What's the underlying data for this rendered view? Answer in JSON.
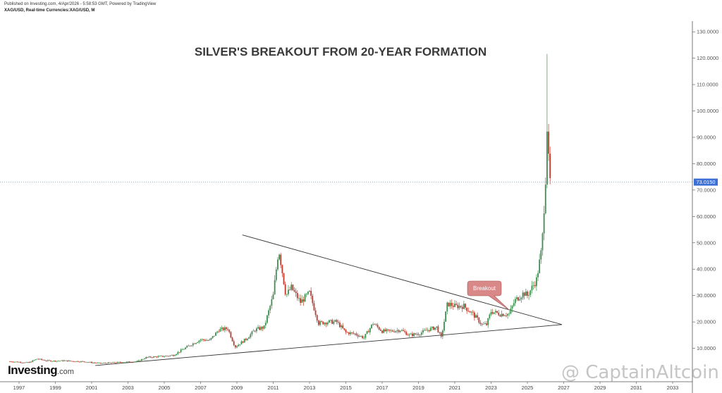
{
  "header": {
    "published": "Published on Investing.com, 4/Apr/2026 - 5:58:53 GMT, Powered by TradingView",
    "symbol": "XAG/USD, Real-time Currencies:XAG/USD, M"
  },
  "logo": {
    "main": "Investing",
    "suffix": ".com"
  },
  "watermark": "@ CaptainAltcoin",
  "colors": {
    "up": "#3e8e4f",
    "down": "#c0392b",
    "price_label": "#3b6fd6",
    "annotation": "#d98888",
    "trendline": "#333333"
  },
  "chart_data": {
    "type": "candlestick",
    "title": "SILVER'S BREAKOUT FROM 20-YEAR FORMATION",
    "interval": "monthly",
    "x_tick_labels": [
      "1997",
      "1999",
      "2001",
      "2003",
      "2005",
      "2007",
      "2009",
      "2011",
      "2013",
      "2015",
      "2017",
      "2019",
      "2021",
      "2023",
      "2025",
      "2027",
      "2029",
      "2031",
      "2033"
    ],
    "y_tick_labels": [
      "130.0000",
      "120.0000",
      "110.0000",
      "100.0000",
      "90.0000",
      "80.0000",
      "70.0000",
      "60.0000",
      "50.0000",
      "40.0000",
      "30.0000",
      "20.0000",
      "10.0000"
    ],
    "xlim": [
      1996.0,
      2034.5
    ],
    "ylim": [
      0,
      135
    ],
    "current_price": 73.015,
    "current_price_label": "73.0150",
    "approx_close_path": [
      [
        1996.5,
        5.0
      ],
      [
        1997.0,
        4.8
      ],
      [
        1997.5,
        4.5
      ],
      [
        1998.0,
        6.0
      ],
      [
        1998.5,
        5.3
      ],
      [
        1999.0,
        5.2
      ],
      [
        1999.5,
        5.3
      ],
      [
        2000.0,
        5.1
      ],
      [
        2000.5,
        5.0
      ],
      [
        2001.0,
        4.6
      ],
      [
        2001.5,
        4.3
      ],
      [
        2002.0,
        4.5
      ],
      [
        2002.5,
        4.7
      ],
      [
        2003.0,
        4.8
      ],
      [
        2003.5,
        5.0
      ],
      [
        2004.0,
        6.5
      ],
      [
        2004.5,
        6.8
      ],
      [
        2005.0,
        7.0
      ],
      [
        2005.5,
        7.4
      ],
      [
        2006.0,
        9.5
      ],
      [
        2006.5,
        11.5
      ],
      [
        2007.0,
        13.3
      ],
      [
        2007.5,
        13.0
      ],
      [
        2008.0,
        17.0
      ],
      [
        2008.5,
        17.5
      ],
      [
        2008.9,
        10.5
      ],
      [
        2009.5,
        13.5
      ],
      [
        2010.0,
        17.0
      ],
      [
        2010.5,
        18.0
      ],
      [
        2011.0,
        30.0
      ],
      [
        2011.3,
        48.0
      ],
      [
        2011.7,
        30.0
      ],
      [
        2012.0,
        33.0
      ],
      [
        2012.5,
        27.5
      ],
      [
        2013.0,
        31.0
      ],
      [
        2013.5,
        19.5
      ],
      [
        2014.0,
        20.0
      ],
      [
        2014.5,
        20.0
      ],
      [
        2015.0,
        16.0
      ],
      [
        2015.5,
        15.5
      ],
      [
        2016.0,
        14.0
      ],
      [
        2016.5,
        19.5
      ],
      [
        2017.0,
        16.5
      ],
      [
        2017.5,
        16.5
      ],
      [
        2018.0,
        17.0
      ],
      [
        2018.5,
        15.0
      ],
      [
        2019.0,
        15.5
      ],
      [
        2019.5,
        17.0
      ],
      [
        2020.0,
        18.0
      ],
      [
        2020.25,
        14.0
      ],
      [
        2020.6,
        27.0
      ],
      [
        2021.0,
        26.0
      ],
      [
        2021.5,
        26.0
      ],
      [
        2022.0,
        23.0
      ],
      [
        2022.5,
        19.0
      ],
      [
        2022.75,
        19.0
      ],
      [
        2023.0,
        24.0
      ],
      [
        2023.5,
        23.0
      ],
      [
        2024.0,
        23.0
      ],
      [
        2024.3,
        28.0
      ],
      [
        2024.8,
        31.0
      ],
      [
        2025.0,
        30.0
      ],
      [
        2025.5,
        36.0
      ],
      [
        2025.8,
        48.0
      ],
      [
        2026.0,
        75.0
      ],
      [
        2026.08,
        95.0
      ],
      [
        2026.15,
        82.0
      ],
      [
        2026.25,
        73.0
      ]
    ],
    "spike_high": 121.6,
    "trendlines": [
      {
        "from": [
          2009.3,
          53.0
        ],
        "to": [
          2026.9,
          19.0
        ]
      },
      {
        "from": [
          2001.2,
          3.5
        ],
        "to": [
          2026.9,
          19.0
        ]
      }
    ],
    "annotations": [
      {
        "text": "Breakout",
        "at": [
          2024.0,
          24.5
        ]
      }
    ]
  }
}
